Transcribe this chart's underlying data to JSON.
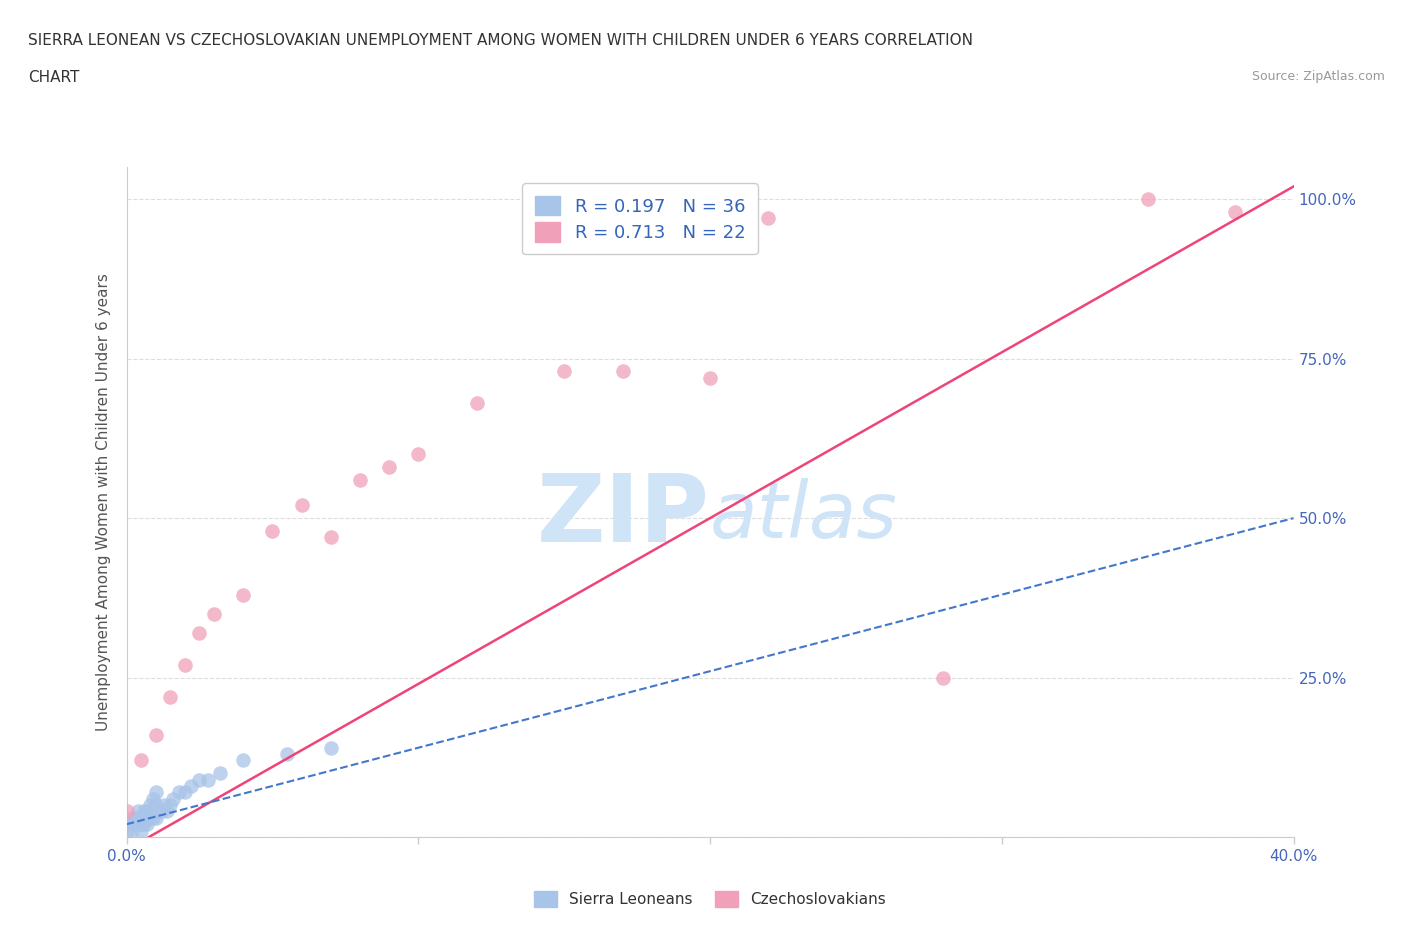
{
  "title_line1": "SIERRA LEONEAN VS CZECHOSLOVAKIAN UNEMPLOYMENT AMONG WOMEN WITH CHILDREN UNDER 6 YEARS CORRELATION",
  "title_line2": "CHART",
  "source_text": "Source: ZipAtlas.com",
  "ylabel": "Unemployment Among Women with Children Under 6 years",
  "xlim": [
    0.0,
    0.4
  ],
  "ylim": [
    0.0,
    1.05
  ],
  "xticks": [
    0.0,
    0.1,
    0.2,
    0.3,
    0.4
  ],
  "xticklabels": [
    "0.0%",
    "",
    "",
    "",
    "40.0%"
  ],
  "yticks": [
    0.0,
    0.25,
    0.5,
    0.75,
    1.0
  ],
  "yticklabels_right": [
    "",
    "25.0%",
    "50.0%",
    "75.0%",
    "100.0%"
  ],
  "sierra_leonean_x": [
    0.0,
    0.0,
    0.002,
    0.002,
    0.003,
    0.003,
    0.004,
    0.004,
    0.005,
    0.005,
    0.005,
    0.006,
    0.006,
    0.007,
    0.007,
    0.008,
    0.008,
    0.009,
    0.009,
    0.01,
    0.01,
    0.01,
    0.012,
    0.013,
    0.014,
    0.015,
    0.016,
    0.018,
    0.02,
    0.022,
    0.025,
    0.028,
    0.032,
    0.04,
    0.055,
    0.07
  ],
  "sierra_leonean_y": [
    0.01,
    0.02,
    0.01,
    0.03,
    0.02,
    0.03,
    0.02,
    0.04,
    0.01,
    0.02,
    0.03,
    0.02,
    0.04,
    0.02,
    0.04,
    0.03,
    0.05,
    0.03,
    0.06,
    0.03,
    0.05,
    0.07,
    0.04,
    0.05,
    0.04,
    0.05,
    0.06,
    0.07,
    0.07,
    0.08,
    0.09,
    0.09,
    0.1,
    0.12,
    0.13,
    0.14
  ],
  "czechoslovakian_x": [
    0.0,
    0.005,
    0.01,
    0.015,
    0.02,
    0.025,
    0.03,
    0.04,
    0.05,
    0.06,
    0.07,
    0.08,
    0.09,
    0.1,
    0.12,
    0.15,
    0.17,
    0.2,
    0.22,
    0.28,
    0.35,
    0.38
  ],
  "czechoslovakian_y": [
    0.04,
    0.12,
    0.16,
    0.22,
    0.27,
    0.32,
    0.35,
    0.38,
    0.48,
    0.52,
    0.47,
    0.56,
    0.58,
    0.6,
    0.68,
    0.73,
    0.73,
    0.72,
    0.97,
    0.25,
    1.0,
    0.98
  ],
  "sl_R": 0.197,
  "sl_N": 36,
  "cz_R": 0.713,
  "cz_N": 22,
  "sl_color": "#a8c4e8",
  "cz_color": "#f0a0b8",
  "sl_line_color": "#4477cc",
  "cz_line_color": "#ee4477",
  "legend_text_color": "#3366bb",
  "watermark_color": "#d0e4f8",
  "background_color": "#ffffff",
  "grid_color": "#dddddd",
  "axis_color": "#cccccc",
  "tick_color": "#4466bb",
  "title_color": "#333333",
  "source_color": "#999999"
}
